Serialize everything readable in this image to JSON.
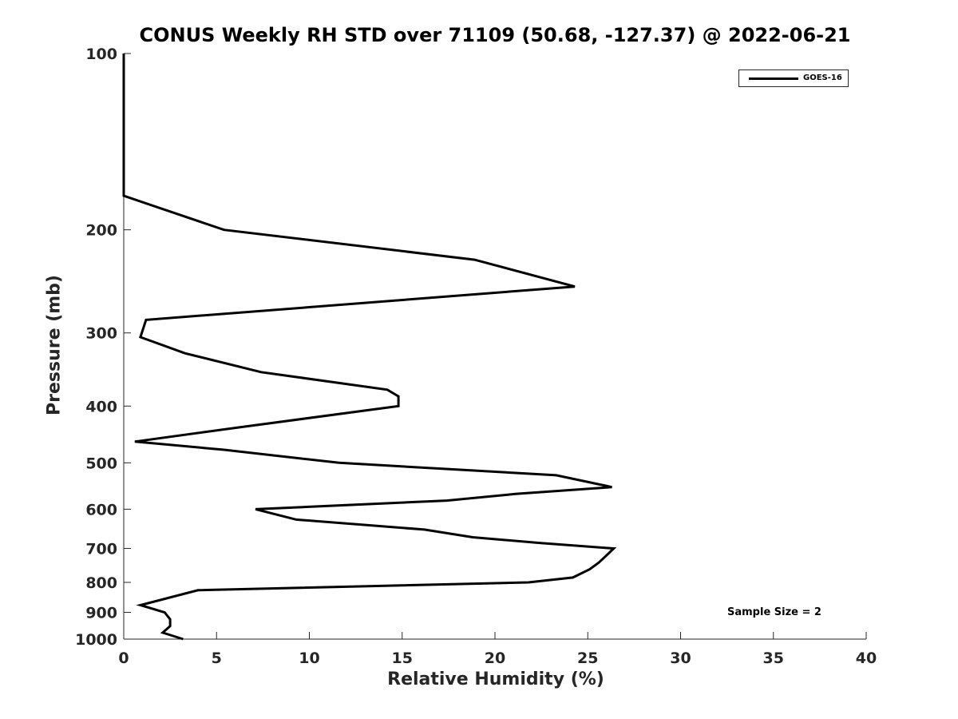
{
  "chart_data": {
    "type": "line",
    "title": "CONUS Weekly RH STD over 71109 (50.68, -127.37) @ 2022-06-21",
    "xlabel": "Relative Humidity (%)",
    "ylabel": "Pressure (mb)",
    "xlim": [
      0,
      40
    ],
    "ylim": [
      100,
      1000
    ],
    "y_scale": "log",
    "y_reversed": true,
    "x_ticks": [
      0,
      5,
      10,
      15,
      20,
      25,
      30,
      35,
      40
    ],
    "y_ticks": [
      100,
      200,
      300,
      400,
      500,
      600,
      700,
      800,
      900,
      1000
    ],
    "grid": false,
    "legend_position": "top-right",
    "series": [
      {
        "name": "GOES-16",
        "color": "#000000",
        "points": [
          {
            "x": 0.0,
            "y": 100
          },
          {
            "x": 0.0,
            "y": 175
          },
          {
            "x": 5.4,
            "y": 200
          },
          {
            "x": 18.9,
            "y": 225
          },
          {
            "x": 24.3,
            "y": 250
          },
          {
            "x": 1.2,
            "y": 285
          },
          {
            "x": 0.9,
            "y": 305
          },
          {
            "x": 3.3,
            "y": 325
          },
          {
            "x": 7.4,
            "y": 350
          },
          {
            "x": 14.2,
            "y": 375
          },
          {
            "x": 14.8,
            "y": 385
          },
          {
            "x": 14.8,
            "y": 400
          },
          {
            "x": 6.2,
            "y": 435
          },
          {
            "x": 0.6,
            "y": 460
          },
          {
            "x": 5.4,
            "y": 475
          },
          {
            "x": 11.6,
            "y": 500
          },
          {
            "x": 23.3,
            "y": 525
          },
          {
            "x": 26.3,
            "y": 550
          },
          {
            "x": 21.1,
            "y": 565
          },
          {
            "x": 17.4,
            "y": 580
          },
          {
            "x": 7.1,
            "y": 600
          },
          {
            "x": 9.3,
            "y": 625
          },
          {
            "x": 16.2,
            "y": 650
          },
          {
            "x": 18.8,
            "y": 670
          },
          {
            "x": 22.4,
            "y": 685
          },
          {
            "x": 26.4,
            "y": 700
          },
          {
            "x": 26.0,
            "y": 720
          },
          {
            "x": 25.6,
            "y": 740
          },
          {
            "x": 25.1,
            "y": 760
          },
          {
            "x": 24.2,
            "y": 785
          },
          {
            "x": 21.8,
            "y": 800
          },
          {
            "x": 4.0,
            "y": 825
          },
          {
            "x": 0.9,
            "y": 875
          },
          {
            "x": 2.2,
            "y": 900
          },
          {
            "x": 2.5,
            "y": 925
          },
          {
            "x": 2.5,
            "y": 950
          },
          {
            "x": 2.1,
            "y": 975
          },
          {
            "x": 3.2,
            "y": 1000
          }
        ]
      }
    ],
    "annotations": [
      "Sample Size = 2"
    ]
  }
}
